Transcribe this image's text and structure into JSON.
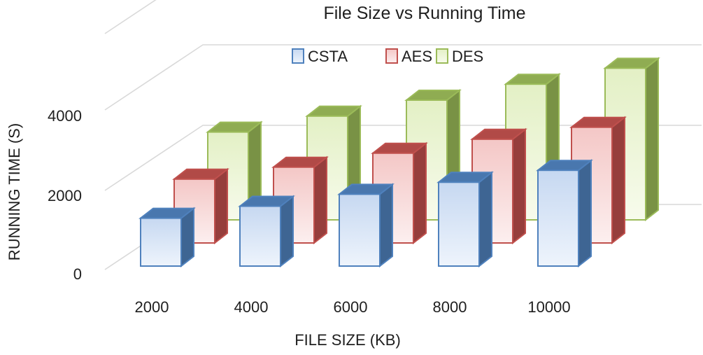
{
  "chart_data": {
    "type": "bar",
    "title": "File Size vs Running Time",
    "xlabel": "FILE SIZE (KB)",
    "ylabel": "RUNNING TIME (S)",
    "categories": [
      "2000",
      "4000",
      "6000",
      "8000",
      "10000"
    ],
    "series": [
      {
        "name": "CSTA",
        "values": [
          1200,
          1500,
          1800,
          2100,
          2400
        ],
        "color": "#4f81bd"
      },
      {
        "name": "AES",
        "values": [
          1600,
          1900,
          2250,
          2600,
          2900
        ],
        "color": "#c0504d"
      },
      {
        "name": "DES",
        "values": [
          2200,
          2600,
          3000,
          3400,
          3800
        ],
        "color": "#9bbb59"
      }
    ],
    "yticks": [
      "0",
      "2000",
      "4000"
    ],
    "ylim": [
      0,
      4800
    ],
    "legend_position": "top",
    "grid": true,
    "style": "3d-clustered-column"
  }
}
